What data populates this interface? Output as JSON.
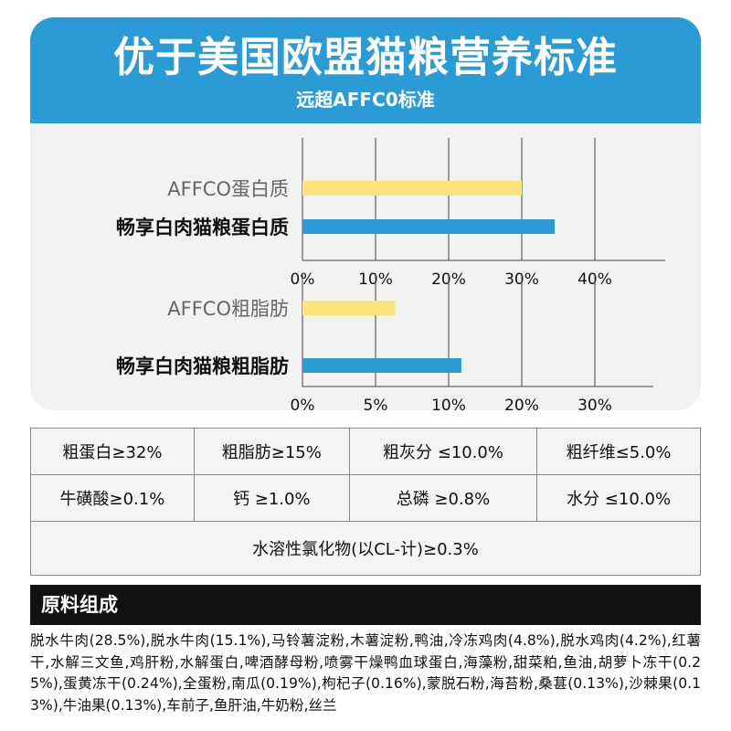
{
  "header": {
    "title": "优于美国欧盟猫粮营养标准",
    "subtitle": "远超AFFC0标准"
  },
  "colors": {
    "blue": "#2b9bd6",
    "yellow": "#fce47a"
  },
  "chart_data": [
    {
      "type": "bar",
      "orientation": "horizontal",
      "categories": [
        "AFFCO蛋白质",
        "畅享白肉猫粮蛋白质"
      ],
      "values": [
        30,
        34.5
      ],
      "x_ticks": [
        "0%",
        "10%",
        "20%",
        "30%",
        "40%"
      ],
      "xlim": [
        0,
        40
      ],
      "grid": true
    },
    {
      "type": "bar",
      "orientation": "horizontal",
      "categories": [
        "AFFCO粗脂肪",
        "畅享白肉猫粮粗脂肪"
      ],
      "values": [
        9.5,
        16.3
      ],
      "x_ticks": [
        "0%",
        "5%",
        "10%",
        "20%",
        "30%"
      ],
      "xlim": [
        0,
        30
      ],
      "grid": true
    }
  ],
  "nutrients": {
    "row1": [
      "粗蛋白≥32%",
      "粗脂肪≥15%",
      "粗灰分 ≤10.0%",
      "粗纤维≤5.0%"
    ],
    "row2": [
      "牛磺酸≥0.1%",
      "钙 ≥1.0%",
      "总磷 ≥0.8%",
      "水分 ≤10.0%"
    ],
    "row3": "水溶性氯化物(以CL-计)≥0.3%"
  },
  "ingredients": {
    "heading": "原料组成",
    "text": "脱水牛肉(28.5%),脱水牛肉(15.1%),马铃薯淀粉,木薯淀粉,鸭油,冷冻鸡肉(4.8%),脱水鸡肉(4.2%),红薯干,水解三文鱼,鸡肝粉,水解蛋白,啤酒酵母粉,喷雾干燥鸭血球蛋白,海藻粉,甜菜粕,鱼油,胡萝卜冻干(0.25%),蛋黄冻干(0.24%),全蛋粉,南瓜(0.19%),枸杞子(0.16%),蒙脱石粉,海苔粉,桑葚(0.13%),沙棘果(0.13%),牛油果(0.13%),车前子,鱼肝油,牛奶粉,丝兰"
  }
}
